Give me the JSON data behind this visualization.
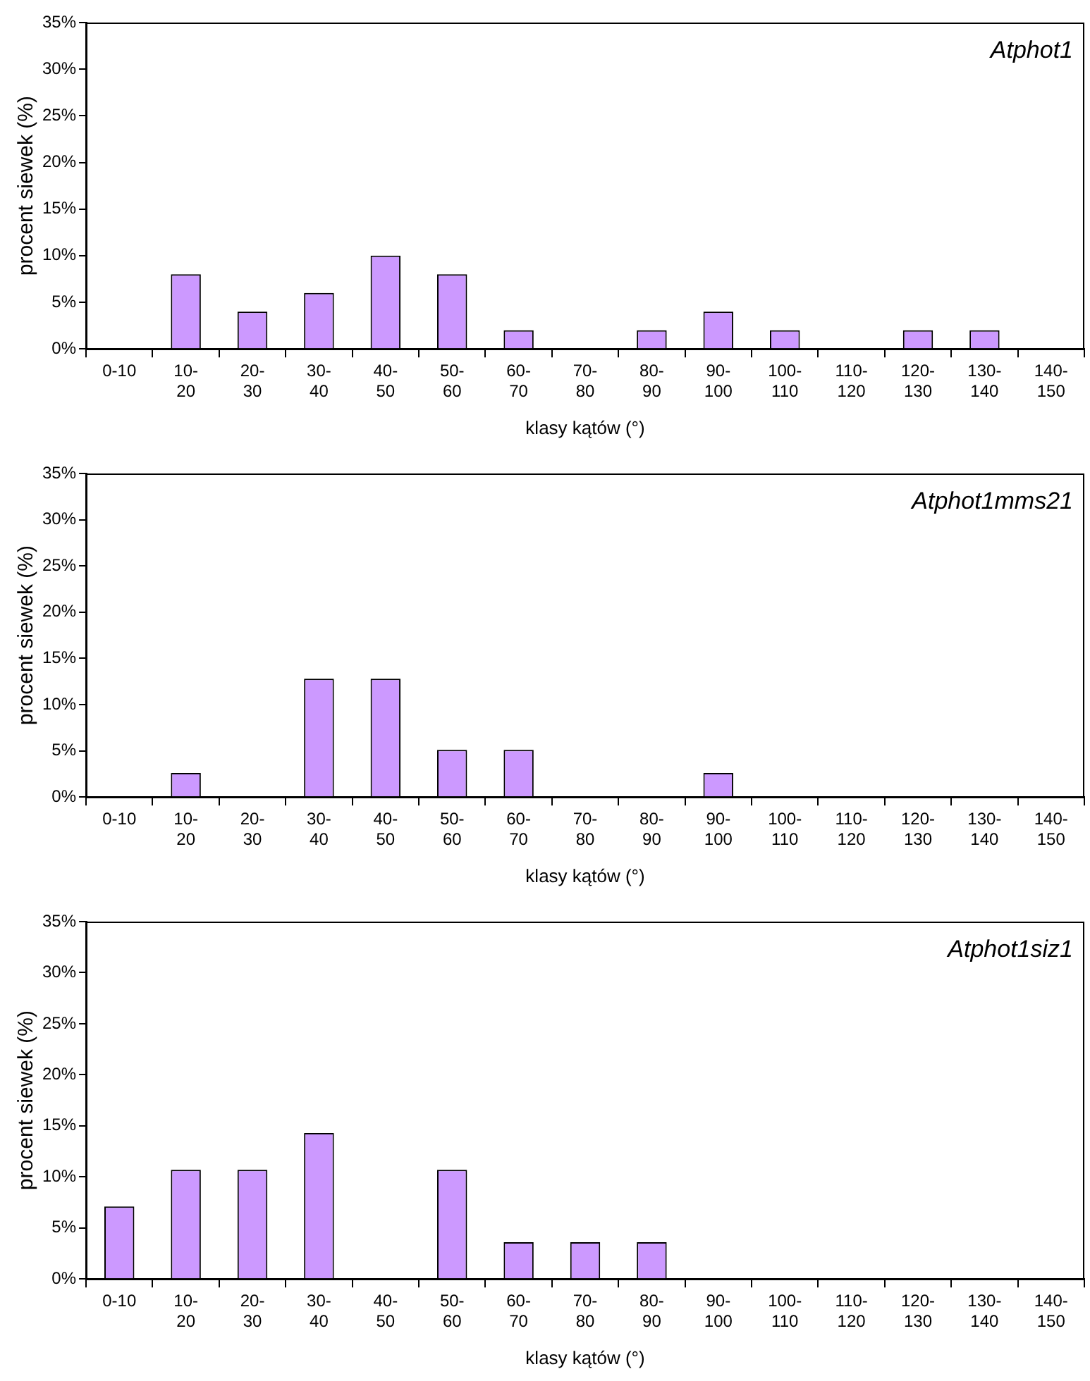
{
  "chart_data": [
    {
      "type": "bar",
      "categories": [
        "0-10",
        "10-\n20",
        "20-\n30",
        "30-\n40",
        "40-\n50",
        "50-\n60",
        "60-\n70",
        "70-\n80",
        "80-\n90",
        "90-\n100",
        "100-\n110",
        "110-\n120",
        "120-\n130",
        "130-\n140",
        "140-\n150"
      ],
      "values": [
        0,
        8,
        4,
        6,
        10,
        8,
        2,
        0,
        2,
        4,
        2,
        0,
        2,
        2,
        0
      ],
      "color": "#cc99ff",
      "xlabel": "klasy kątów (°)",
      "ylabel": "procent siewek (%)",
      "annotations": [
        "Atphot1"
      ],
      "ylim": [
        0,
        35
      ],
      "yticks": [
        {
          "value": 0,
          "label": "0%"
        },
        {
          "value": 5,
          "label": "5%"
        },
        {
          "value": 10,
          "label": "10%"
        },
        {
          "value": 15,
          "label": "15%"
        },
        {
          "value": 20,
          "label": "20%"
        },
        {
          "value": 25,
          "label": "25%"
        },
        {
          "value": 30,
          "label": "30%"
        },
        {
          "value": 35,
          "label": "35%"
        }
      ],
      "grid": false,
      "legend": false
    },
    {
      "type": "bar",
      "categories": [
        "0-10",
        "10-\n20",
        "20-\n30",
        "30-\n40",
        "40-\n50",
        "50-\n60",
        "60-\n70",
        "70-\n80",
        "80-\n90",
        "90-\n100",
        "100-\n110",
        "110-\n120",
        "120-\n130",
        "130-\n140",
        "140-\n150"
      ],
      "values": [
        0,
        2.6,
        0,
        12.8,
        12.8,
        5.1,
        5.1,
        0,
        0,
        2.6,
        0,
        0,
        0,
        0,
        0
      ],
      "color": "#cc99ff",
      "xlabel": "klasy kątów (°)",
      "ylabel": "procent siewek (%)",
      "annotations": [
        "Atphot1mms21"
      ],
      "ylim": [
        0,
        35
      ],
      "yticks": [
        {
          "value": 0,
          "label": "0%"
        },
        {
          "value": 5,
          "label": "5%"
        },
        {
          "value": 10,
          "label": "10%"
        },
        {
          "value": 15,
          "label": "15%"
        },
        {
          "value": 20,
          "label": "20%"
        },
        {
          "value": 25,
          "label": "25%"
        },
        {
          "value": 30,
          "label": "30%"
        },
        {
          "value": 35,
          "label": "35%"
        }
      ],
      "grid": false,
      "legend": false
    },
    {
      "type": "bar",
      "categories": [
        "0-10",
        "10-\n20",
        "20-\n30",
        "30-\n40",
        "40-\n50",
        "50-\n60",
        "60-\n70",
        "70-\n80",
        "80-\n90",
        "90-\n100",
        "100-\n110",
        "110-\n120",
        "120-\n130",
        "130-\n140",
        "140-\n150"
      ],
      "values": [
        7.1,
        10.7,
        10.7,
        14.3,
        0,
        10.7,
        3.6,
        3.6,
        3.6,
        0,
        0,
        0,
        0,
        0,
        0
      ],
      "color": "#cc99ff",
      "xlabel": "klasy kątów (°)",
      "ylabel": "procent siewek (%)",
      "annotations": [
        "Atphot1siz1"
      ],
      "ylim": [
        0,
        35
      ],
      "yticks": [
        {
          "value": 0,
          "label": "0%"
        },
        {
          "value": 5,
          "label": "5%"
        },
        {
          "value": 10,
          "label": "10%"
        },
        {
          "value": 15,
          "label": "15%"
        },
        {
          "value": 20,
          "label": "20%"
        },
        {
          "value": 25,
          "label": "25%"
        },
        {
          "value": 30,
          "label": "30%"
        },
        {
          "value": 35,
          "label": "35%"
        }
      ],
      "grid": false,
      "legend": false
    }
  ]
}
